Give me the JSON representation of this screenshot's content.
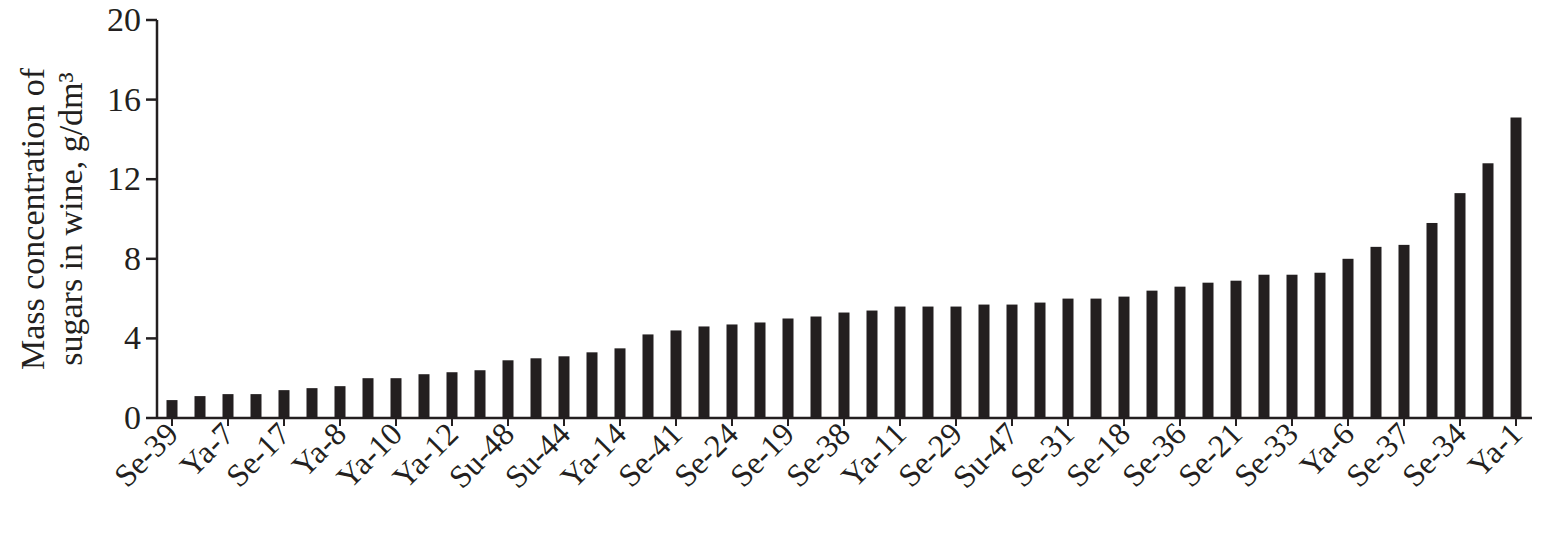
{
  "chart_data": {
    "type": "bar",
    "ylabel": [
      "Mass concentration of",
      "sugars in wine, g/dm³"
    ],
    "categories": [
      "Se-39",
      null,
      "Ya-7",
      null,
      "Se-17",
      null,
      "Ya-8",
      null,
      "Ya-10",
      null,
      "Ya-12",
      null,
      "Su-48",
      null,
      "Su-44",
      null,
      "Ya-14",
      null,
      "Se-41",
      null,
      "Se-24",
      null,
      "Se-19",
      null,
      "Se-38",
      null,
      "Ya-11",
      null,
      "Se-29",
      null,
      "Su-47",
      null,
      "Se-31",
      null,
      "Se-18",
      null,
      "Se-36",
      null,
      "Se-21",
      null,
      "Se-33",
      null,
      "Ya-6",
      null,
      "Se-37",
      null,
      "Se-34",
      null,
      "Ya-1"
    ],
    "values": [
      0.9,
      1.1,
      1.2,
      1.2,
      1.4,
      1.5,
      1.6,
      2.0,
      2.0,
      2.2,
      2.3,
      2.4,
      2.9,
      3.0,
      3.1,
      3.3,
      3.5,
      4.2,
      4.4,
      4.6,
      4.7,
      4.8,
      5.0,
      5.1,
      5.3,
      5.4,
      5.6,
      5.6,
      5.6,
      5.7,
      5.7,
      5.8,
      6.0,
      6.0,
      6.1,
      6.4,
      6.6,
      6.8,
      6.9,
      7.2,
      7.2,
      7.3,
      8.0,
      8.6,
      8.7,
      9.8,
      11.3,
      12.8,
      15.1
    ],
    "color": "#231f20",
    "ylim": [
      0,
      20
    ],
    "yticks": [
      0,
      4,
      8,
      12,
      16,
      20
    ],
    "grid": false
  }
}
